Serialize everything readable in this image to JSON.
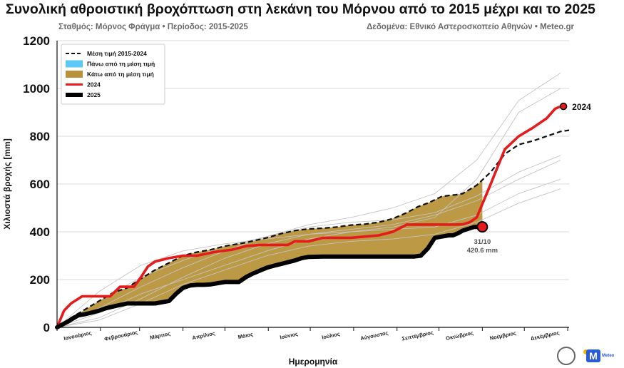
{
  "title": "Συνολική αθροιστική βροχόπτωση στη λεκάνη του Μόρνου από το 2015 μέχρι και το 2025",
  "subtitle_left": "Σταθμός: Μόρνος Φράγμα • Περίοδος: 2015-2025",
  "subtitle_right": "Δεδομένα: Εθνικό Αστεροσκοπείο Αθηνών • Meteo.gr",
  "logos": {
    "meteo_text": "Meteo",
    "meteo_letter": "M"
  },
  "chart_data": {
    "type": "line",
    "title": "Συνολική αθροιστική βροχόπτωση στη λεκάνη του Μόρνου από το 2015 μέχρι και το 2025",
    "xlabel": "Ημερομηνία",
    "ylabel": "Χιλιοστά βροχής [mm]",
    "ylim": [
      0,
      1200
    ],
    "yticks": [
      0,
      200,
      400,
      600,
      800,
      1000,
      1200
    ],
    "xlim": [
      0,
      366
    ],
    "month_ticks": [
      "Ιανουάριος",
      "Φεβρουάριος",
      "Μάρτιος",
      "Απρίλιος",
      "Μάιος",
      "Ιούνιος",
      "Ιούλιος",
      "Αύγουστος",
      "Σεπτέμβριος",
      "Οκτώβριος",
      "Νοέμβριος",
      "Δεκέμβριος"
    ],
    "month_tick_days": [
      15,
      46,
      74,
      105,
      135,
      166,
      196,
      227,
      258,
      288,
      319,
      349
    ],
    "grid": true,
    "legend_position": "top-left",
    "legend": [
      {
        "key": "mean",
        "label": "Μέση τιμή 2015-2024",
        "color": "#111111",
        "style": "dashed"
      },
      {
        "key": "above",
        "label": "Πάνω από τη μέση τιμή",
        "color": "#5bc8f5",
        "style": "fill"
      },
      {
        "key": "below",
        "label": "Κάτω από τη μέση τιμή",
        "color": "#b8933a",
        "style": "fill"
      },
      {
        "key": "y2024",
        "label": "2024",
        "color": "#e51b1b",
        "style": "line"
      },
      {
        "key": "y2025",
        "label": "2025",
        "color": "#000000",
        "style": "thick"
      }
    ],
    "series": [
      {
        "name": "Μέση τιμή 2015-2024",
        "x": [
          0,
          10,
          20,
          30,
          40,
          50,
          59,
          70,
          80,
          90,
          100,
          110,
          120,
          135,
          150,
          160,
          170,
          180,
          190,
          200,
          210,
          220,
          230,
          240,
          250,
          258,
          265,
          275,
          280,
          285,
          290,
          300,
          310,
          320,
          330,
          340,
          350,
          360,
          366
        ],
        "values": [
          0,
          40,
          75,
          110,
          145,
          165,
          200,
          240,
          270,
          300,
          315,
          325,
          340,
          355,
          375,
          392,
          405,
          412,
          415,
          420,
          428,
          432,
          440,
          455,
          480,
          505,
          520,
          548,
          552,
          555,
          560,
          595,
          650,
          725,
          765,
          780,
          800,
          820,
          825
        ]
      },
      {
        "name": "2024",
        "x": [
          0,
          5,
          10,
          18,
          28,
          38,
          45,
          55,
          60,
          65,
          70,
          80,
          90,
          100,
          112,
          125,
          135,
          145,
          155,
          165,
          170,
          180,
          190,
          200,
          210,
          220,
          230,
          240,
          250,
          255,
          265,
          275,
          280,
          285,
          290,
          295,
          300,
          310,
          320,
          330,
          340,
          350,
          356,
          360,
          362
        ],
        "values": [
          0,
          70,
          100,
          130,
          130,
          130,
          170,
          170,
          210,
          255,
          275,
          290,
          300,
          300,
          315,
          325,
          340,
          345,
          345,
          345,
          360,
          360,
          375,
          375,
          375,
          380,
          385,
          400,
          430,
          430,
          430,
          430,
          430,
          430,
          431,
          440,
          460,
          600,
          745,
          800,
          835,
          875,
          915,
          925,
          925
        ]
      },
      {
        "name": "2025",
        "x": [
          0,
          8,
          15,
          20,
          25,
          30,
          35,
          42,
          50,
          55,
          60,
          70,
          80,
          85,
          90,
          95,
          100,
          105,
          110,
          115,
          120,
          125,
          130,
          135,
          140,
          150,
          155,
          160,
          170,
          175,
          180,
          190,
          200,
          210,
          220,
          230,
          240,
          250,
          255,
          260,
          265,
          270,
          275,
          280,
          283,
          287,
          290,
          298,
          304
        ],
        "values": [
          0,
          25,
          50,
          55,
          62,
          70,
          80,
          90,
          100,
          100,
          100,
          100,
          110,
          140,
          165,
          175,
          178,
          178,
          180,
          185,
          190,
          190,
          190,
          210,
          225,
          250,
          258,
          265,
          280,
          290,
          295,
          296,
          296,
          296,
          296,
          296,
          296,
          296,
          296,
          300,
          330,
          375,
          380,
          385,
          385,
          395,
          405,
          420,
          420.6
        ]
      }
    ],
    "past_years_gray": [
      {
        "year": "a",
        "x": [
          0,
          30,
          60,
          90,
          120,
          150,
          180,
          210,
          240,
          270,
          300,
          330,
          360
        ],
        "values": [
          0,
          80,
          170,
          250,
          320,
          380,
          430,
          460,
          500,
          560,
          700,
          950,
          1065
        ]
      },
      {
        "year": "b",
        "x": [
          0,
          30,
          60,
          90,
          120,
          150,
          180,
          210,
          240,
          270,
          300,
          330,
          360
        ],
        "values": [
          0,
          60,
          140,
          200,
          260,
          320,
          370,
          400,
          420,
          460,
          620,
          900,
          1000
        ]
      },
      {
        "year": "c",
        "x": [
          0,
          30,
          60,
          90,
          120,
          150,
          180,
          210,
          240,
          270,
          300,
          330,
          360
        ],
        "values": [
          0,
          110,
          210,
          280,
          340,
          380,
          420,
          440,
          450,
          480,
          550,
          650,
          720
        ]
      },
      {
        "year": "d",
        "x": [
          0,
          30,
          60,
          90,
          120,
          150,
          180,
          210,
          240,
          270,
          300,
          330,
          360
        ],
        "values": [
          0,
          40,
          120,
          210,
          290,
          350,
          390,
          410,
          430,
          470,
          530,
          620,
          700
        ]
      },
      {
        "year": "e",
        "x": [
          0,
          30,
          60,
          90,
          120,
          150,
          180,
          210,
          240,
          270,
          300,
          330,
          360
        ],
        "values": [
          0,
          150,
          260,
          320,
          350,
          370,
          390,
          400,
          410,
          420,
          470,
          560,
          620
        ]
      },
      {
        "year": "f",
        "x": [
          0,
          30,
          60,
          90,
          120,
          150,
          180,
          210,
          240,
          270,
          300,
          330,
          360
        ],
        "values": [
          0,
          30,
          100,
          180,
          240,
          300,
          340,
          360,
          370,
          390,
          440,
          520,
          580
        ]
      }
    ],
    "annotations": [
      {
        "text": "2024",
        "x": 362,
        "y": 925,
        "color": "#e51b1b"
      },
      {
        "text": "31/10",
        "x": 304,
        "y": 420.6,
        "color": "#555555"
      },
      {
        "text": "420.6 mm",
        "x": 304,
        "y": 420.6,
        "color": "#555555"
      }
    ]
  }
}
